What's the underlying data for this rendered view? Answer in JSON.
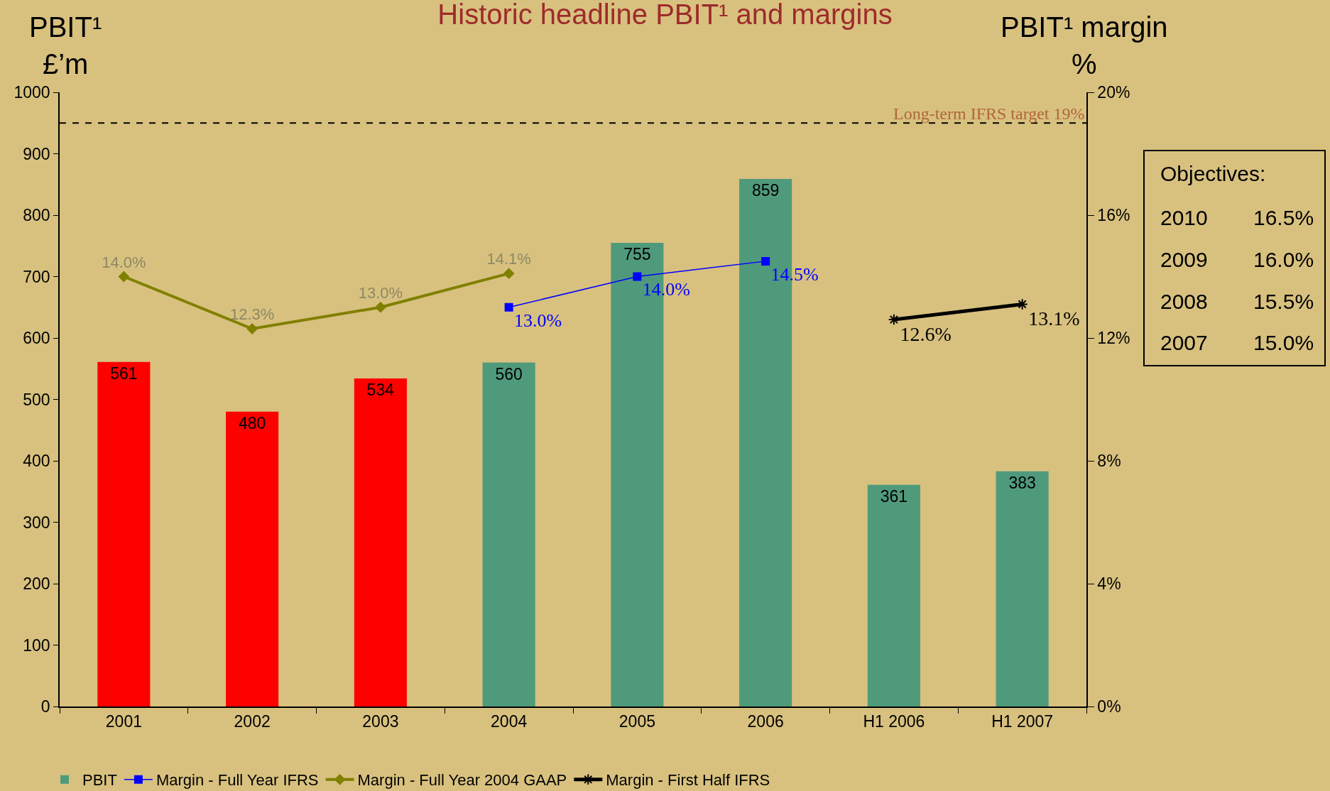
{
  "chart_data": {
    "type": "bar",
    "title": "Historic headline PBIT¹ and margins",
    "ylabel": "PBIT¹\n£’m",
    "y2label": "PBIT¹ margin\n%",
    "categories": [
      "2001",
      "2002",
      "2003",
      "2004",
      "2005",
      "2006",
      "H1 2006",
      "H1 2007"
    ],
    "series": [
      {
        "name": "PBIT",
        "color": "#509a7c",
        "colors": [
          "#ff0000",
          "#ff0000",
          "#ff0000",
          "#509a7c",
          "#509a7c",
          "#509a7c",
          "#509a7c",
          "#509a7c"
        ],
        "values": [
          561,
          480,
          534,
          560,
          755,
          859,
          361,
          383
        ],
        "value_labels": [
          "561",
          "480",
          "534",
          "560",
          "755",
          "859",
          "361",
          "383"
        ]
      },
      {
        "name": "Margin - Full Year IFRS",
        "type": "line",
        "axis": "y2",
        "color": "#0000ff",
        "marker": "square",
        "values": [
          null,
          null,
          null,
          13.0,
          14.0,
          14.5,
          null,
          null
        ],
        "value_labels": [
          null,
          null,
          null,
          "13.0%",
          "14.0%",
          "14.5%",
          null,
          null
        ]
      },
      {
        "name": "Margin - Full Year 2004 GAAP",
        "type": "line",
        "axis": "y2",
        "color": "#808000",
        "marker": "diamond",
        "values": [
          14.0,
          12.3,
          13.0,
          14.1,
          null,
          null,
          null,
          null
        ],
        "value_labels": [
          "14.0%",
          "12.3%",
          "13.0%",
          "14.1%",
          null,
          null,
          null,
          null
        ]
      },
      {
        "name": "Margin - First Half IFRS",
        "type": "line",
        "axis": "y2",
        "color": "#000000",
        "marker": "cross",
        "values": [
          null,
          null,
          null,
          null,
          null,
          null,
          12.6,
          13.1
        ],
        "value_labels": [
          null,
          null,
          null,
          null,
          null,
          null,
          "12.6%",
          "13.1%"
        ]
      }
    ],
    "ylim": [
      0,
      1000
    ],
    "yticks": [
      0,
      100,
      200,
      300,
      400,
      500,
      600,
      700,
      800,
      900,
      1000
    ],
    "y2lim": [
      0,
      20
    ],
    "y2ticks": [
      {
        "value": 0,
        "label": "0%"
      },
      {
        "value": 4,
        "label": "4%"
      },
      {
        "value": 8,
        "label": "8%"
      },
      {
        "value": 12,
        "label": "12%"
      },
      {
        "value": 16,
        "label": "16%"
      },
      {
        "value": 20,
        "label": "20%"
      }
    ],
    "ref_lines": [
      {
        "axis": "y2",
        "value": 19,
        "label": "Long-term IFRS target 19%",
        "color": "#000000",
        "line_style": "dashed"
      }
    ],
    "annotations": [
      "Objectives:",
      "2010",
      "16.5%",
      "2009",
      "16.0%",
      "2008",
      "15.5%",
      "2007",
      "15.0%"
    ],
    "legend": "bottom"
  }
}
